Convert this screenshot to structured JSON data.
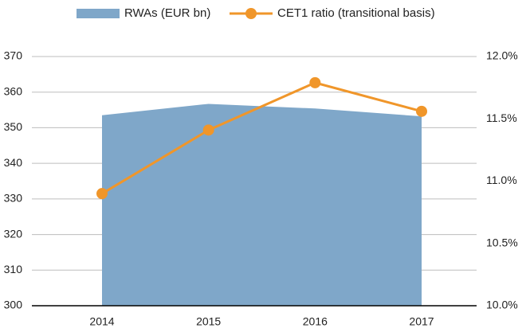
{
  "chart_data": {
    "type": "area_line",
    "categories": [
      "2014",
      "2015",
      "2016",
      "2017"
    ],
    "series": [
      {
        "name": "RWAs (EUR bn)",
        "color": "#7fa7c9",
        "type": "area",
        "values": [
          353.5,
          356.7,
          355.4,
          353.2
        ]
      },
      {
        "name": "CET1 ratio (transitional basis)",
        "color": "#f0962a",
        "type": "line",
        "axis": "y2",
        "values": [
          10.9,
          11.41,
          11.79,
          11.56
        ]
      }
    ],
    "ylim": [
      300,
      370
    ],
    "yticks": [
      300,
      310,
      320,
      330,
      340,
      350,
      360,
      370
    ],
    "y2lim": [
      10,
      12
    ],
    "y2ticks": [
      {
        "value": 10,
        "label": "10.0%"
      },
      {
        "value": 10.5,
        "label": "10.5%"
      },
      {
        "value": 11,
        "label": "11.0%"
      },
      {
        "value": 11.5,
        "label": "11.5%"
      },
      {
        "value": 12,
        "label": "12.0%"
      }
    ],
    "grid": true,
    "legend": "top"
  }
}
